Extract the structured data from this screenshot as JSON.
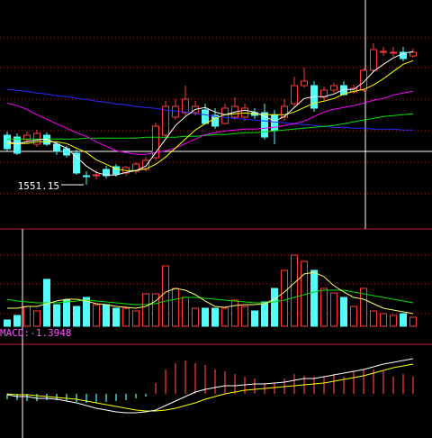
{
  "chart_data": [
    {
      "type": "candlestick",
      "up_color": "#ff3c3c",
      "down_color": "#54fcfc",
      "ylim": [
        1533.65,
        1653.65
      ],
      "open": [
        1578.65,
        1577.65,
        1576.15,
        1573.65,
        1578.65,
        1573.65,
        1571.15,
        1568.65,
        1556.15,
        1556.15,
        1559.65,
        1561.15,
        1557.65,
        1558.65,
        1559.65,
        1566.15,
        1578.65,
        1588.65,
        1591.15,
        1591.15,
        1592.65,
        1589.65,
        1585.15,
        1588.65,
        1588.65,
        1591.15,
        1591.15,
        1589.65,
        1588.65,
        1596.15,
        1606.15,
        1606.15,
        1599.65,
        1603.65,
        1606.15,
        1602.65,
        1603.65,
        1614.65,
        1624.65,
        1624.65,
        1624.65,
        1622.65
      ],
      "high": [
        1580.65,
        1579.65,
        1580.65,
        1581.65,
        1580.15,
        1575.15,
        1572.65,
        1570.65,
        1558.65,
        1559.65,
        1561.65,
        1562.65,
        1561.65,
        1563.65,
        1566.65,
        1585.65,
        1597.65,
        1598.65,
        1606.15,
        1597.65,
        1596.15,
        1593.65,
        1596.15,
        1599.65,
        1596.15,
        1593.65,
        1596.15,
        1592.65,
        1598.65,
        1611.15,
        1616.15,
        1608.65,
        1605.65,
        1607.65,
        1608.65,
        1606.65,
        1615.65,
        1629.65,
        1627.65,
        1627.65,
        1627.65,
        1626.65
      ],
      "low": [
        1569.65,
        1567.65,
        1574.65,
        1572.15,
        1572.65,
        1567.65,
        1566.15,
        1556.65,
        1551.15,
        1554.15,
        1554.65,
        1555.65,
        1556.15,
        1557.15,
        1558.65,
        1564.65,
        1577.65,
        1587.15,
        1589.65,
        1589.65,
        1584.65,
        1582.15,
        1584.65,
        1587.15,
        1586.65,
        1587.65,
        1576.15,
        1573.65,
        1586.65,
        1594.65,
        1605.15,
        1591.65,
        1597.65,
        1602.15,
        1600.65,
        1601.65,
        1602.65,
        1613.65,
        1622.65,
        1622.15,
        1619.65,
        1621.65
      ],
      "close": [
        1571.15,
        1568.65,
        1578.65,
        1579.65,
        1573.65,
        1569.65,
        1567.65,
        1557.65,
        1555.65,
        1556.65,
        1556.15,
        1557.15,
        1560.65,
        1562.65,
        1564.65,
        1583.65,
        1594.65,
        1594.65,
        1598.65,
        1594.65,
        1585.15,
        1583.65,
        1593.65,
        1594.65,
        1593.65,
        1589.65,
        1577.65,
        1581.15,
        1594.65,
        1606.15,
        1608.65,
        1593.65,
        1603.65,
        1606.15,
        1601.15,
        1604.65,
        1614.65,
        1626.15,
        1625.15,
        1624.65,
        1621.15,
        1624.65
      ],
      "series": [
        {
          "color": "#2a2aff",
          "values": [
            1604,
            1603.5,
            1603,
            1602,
            1601.5,
            1600.5,
            1600,
            1599,
            1598.5,
            1597.5,
            1597,
            1596,
            1595.5,
            1594.5,
            1594,
            1593.5,
            1592.5,
            1592,
            1591.5,
            1590.5,
            1590,
            1589,
            1588.5,
            1588,
            1587.5,
            1587,
            1586.5,
            1586,
            1585.5,
            1585,
            1584.5,
            1584,
            1583.5,
            1583,
            1583,
            1582.5,
            1582.5,
            1582,
            1582,
            1582,
            1581.5,
            1581.5
          ]
        },
        {
          "color": "#00e000",
          "values": [
            1576.5,
            1576.5,
            1576.5,
            1576.5,
            1576.5,
            1576.5,
            1576.5,
            1576.5,
            1577,
            1577,
            1577,
            1577,
            1577,
            1577,
            1577.5,
            1577.5,
            1577.5,
            1577.5,
            1578,
            1578,
            1578.5,
            1579,
            1579,
            1579.5,
            1580,
            1580,
            1580.5,
            1581,
            1581.5,
            1582,
            1582.5,
            1583,
            1583.5,
            1584,
            1585,
            1586,
            1587,
            1588,
            1589,
            1589.5,
            1590,
            1590.5
          ]
        },
        {
          "color": "#ff00ff",
          "values": [
            1596.5,
            1595,
            1593,
            1590,
            1587.5,
            1585,
            1582.5,
            1580,
            1578,
            1575,
            1572.5,
            1570,
            1569,
            1568,
            1568,
            1569,
            1570,
            1571.5,
            1574,
            1576.5,
            1579,
            1580,
            1581,
            1581.5,
            1582,
            1582,
            1582.5,
            1583,
            1584,
            1585,
            1586.5,
            1589,
            1591.5,
            1593,
            1594,
            1595,
            1596.5,
            1598,
            1599,
            1601,
            1602,
            1603
          ]
        },
        {
          "color": "#ffff00",
          "values": [
            1574,
            1574,
            1574,
            1575,
            1575,
            1575,
            1574,
            1571.5,
            1569,
            1565,
            1562.5,
            1560,
            1559,
            1559,
            1560,
            1562.5,
            1566.5,
            1571.5,
            1576.5,
            1581.5,
            1585,
            1588,
            1590,
            1590.5,
            1591,
            1590.5,
            1590,
            1590,
            1590,
            1591.5,
            1594,
            1596.5,
            1597.5,
            1599,
            1601.5,
            1603,
            1604,
            1606.5,
            1610,
            1614,
            1618,
            1620
          ]
        },
        {
          "color": "#ffffff",
          "values": [
            1575,
            1574,
            1575,
            1576,
            1576.5,
            1574,
            1571.5,
            1566.5,
            1561.5,
            1558,
            1556.5,
            1556.5,
            1558,
            1559,
            1561.5,
            1569,
            1576.5,
            1584,
            1589,
            1593,
            1594,
            1591.5,
            1590,
            1591.5,
            1592.5,
            1591.5,
            1589,
            1586.5,
            1589,
            1594,
            1599,
            1600,
            1600,
            1601.5,
            1604,
            1604,
            1608,
            1614,
            1618,
            1621.5,
            1624,
            1625
          ]
        }
      ]
    },
    {
      "type": "bar",
      "ylim": [
        0,
        108
      ],
      "values": [
        7,
        12,
        22,
        17,
        52,
        24,
        29,
        22,
        32,
        24,
        24,
        20,
        20,
        17,
        36,
        36,
        67,
        42,
        32,
        20,
        20,
        20,
        20,
        29,
        22,
        17,
        27,
        42,
        62,
        79,
        72,
        62,
        42,
        37,
        32,
        22,
        42,
        17,
        14,
        12,
        14,
        10
      ],
      "series": [
        {
          "color": "#00e000",
          "values": [
            30,
            28,
            27,
            26,
            26,
            26,
            27,
            28,
            29,
            28,
            27,
            26,
            25,
            24,
            24,
            25,
            28,
            30,
            32,
            32,
            31,
            30,
            29,
            28,
            27,
            26,
            26,
            27,
            29,
            32,
            35,
            38,
            40,
            40,
            40,
            38,
            36,
            34,
            32,
            30,
            28,
            26
          ]
        },
        {
          "color": "#ffff66",
          "values": [
            20,
            20,
            22,
            22,
            25,
            28,
            30,
            30,
            28,
            25,
            24,
            22,
            21,
            20,
            22,
            28,
            38,
            42,
            40,
            35,
            28,
            22,
            21,
            23,
            24,
            24,
            25,
            30,
            38,
            48,
            58,
            60,
            55,
            45,
            38,
            32,
            30,
            25,
            20,
            18,
            16,
            14
          ]
        }
      ]
    },
    {
      "type": "macd",
      "label": "MACD:-1.3948",
      "label_color": "#ff50ff",
      "ylim": [
        -9.8,
        11
      ],
      "up_color": "#ff3c3c",
      "down_color": "#54fcfc",
      "values": [
        -1.2,
        -1.4,
        -1.6,
        -1.6,
        -1.4,
        -1.4,
        -1.6,
        -1.8,
        -2,
        -2,
        -1.8,
        -1.6,
        -1.4,
        -1,
        -0.6,
        2.4,
        5.4,
        6.8,
        7.4,
        6.8,
        6.4,
        5.4,
        5,
        4.4,
        3.8,
        3.4,
        2.4,
        2.4,
        3.4,
        4.4,
        4,
        3.8,
        3.8,
        4.4,
        3.8,
        5,
        5.4,
        5.4,
        5,
        3.8,
        4.4,
        3.8
      ],
      "series": [
        {
          "color": "#ffff00",
          "values": [
            0,
            -0.2,
            -0.2,
            -0.4,
            -0.6,
            -0.8,
            -1,
            -1.2,
            -1.6,
            -2,
            -2.4,
            -2.8,
            -3.2,
            -3.6,
            -3.8,
            -3.8,
            -3.6,
            -3.2,
            -2.6,
            -2,
            -1.2,
            -0.6,
            0,
            0.4,
            0.8,
            1,
            1.2,
            1.4,
            1.6,
            1.8,
            2,
            2.2,
            2.4,
            2.8,
            3.2,
            3.6,
            4,
            4.6,
            5.2,
            5.8,
            6.2,
            6.6
          ]
        },
        {
          "color": "#ffffff",
          "values": [
            -0.2,
            -0.6,
            -0.6,
            -1,
            -1,
            -1.2,
            -1.6,
            -2,
            -2.6,
            -3.2,
            -3.6,
            -4,
            -4.2,
            -4.2,
            -4,
            -3.6,
            -2.6,
            -1.6,
            -0.6,
            0.4,
            1,
            1.4,
            1.8,
            1.8,
            2,
            2.2,
            2.2,
            2.4,
            2.6,
            3,
            3.4,
            3.4,
            3.8,
            4.2,
            4.6,
            5,
            5.4,
            6,
            6.6,
            7,
            7.4,
            7.8
          ]
        }
      ]
    }
  ]
}
